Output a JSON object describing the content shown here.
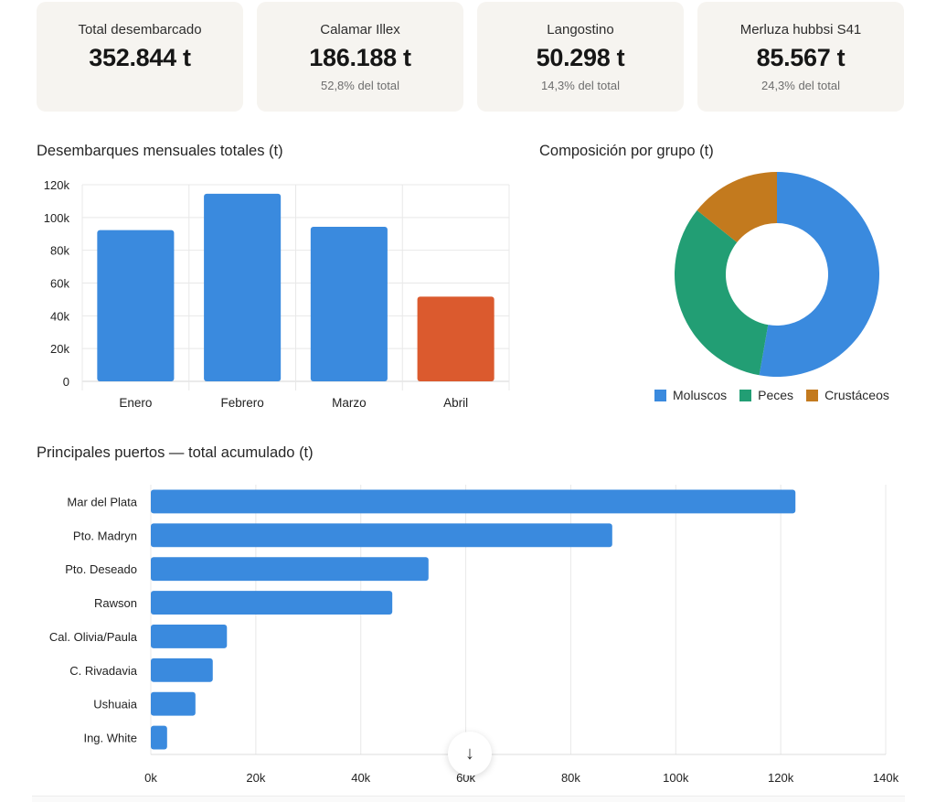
{
  "kpis": [
    {
      "label": "Total desembarcado",
      "value": "352.844 t",
      "sub": ""
    },
    {
      "label": "Calamar Illex",
      "value": "186.188 t",
      "sub": "52,8% del total"
    },
    {
      "label": "Langostino",
      "value": "50.298 t",
      "sub": "14,3% del total"
    },
    {
      "label": "Merluza hubbsi S41",
      "value": "85.567 t",
      "sub": "24,3% del total"
    }
  ],
  "colors": {
    "primary": "#3a8ade",
    "highlight": "#db5a2e",
    "peces": "#229e74",
    "crustaceos": "#c37a1e",
    "grid": "#e8e8e8"
  },
  "scroll_button": {
    "icon": "arrow-down-icon",
    "glyph": "↓"
  },
  "chart_data": [
    {
      "type": "bar",
      "title": "Desembarques mensuales totales (t)",
      "categories": [
        "Enero",
        "Febrero",
        "Marzo",
        "Abril"
      ],
      "values": [
        92300,
        114500,
        94300,
        51700
      ],
      "highlight_index": 3,
      "ylim": [
        0,
        120000
      ],
      "yticks": [
        0,
        20000,
        40000,
        60000,
        80000,
        100000,
        120000
      ],
      "ytick_labels": [
        "0",
        "20k",
        "40k",
        "60k",
        "80k",
        "100k",
        "120k"
      ],
      "xlabel": "",
      "ylabel": "",
      "grid": true
    },
    {
      "type": "pie",
      "variant": "donut",
      "title": "Composición por grupo (t)",
      "labels": [
        "Moluscos",
        "Peces",
        "Crustáceos"
      ],
      "values": [
        186188,
        116358,
        50298
      ],
      "colors": [
        "#3a8ade",
        "#229e74",
        "#c37a1e"
      ],
      "legend": "bottom"
    },
    {
      "type": "bar",
      "orientation": "horizontal",
      "title": "Principales puertos — total acumulado (t)",
      "categories": [
        "Mar del Plata",
        "Pto. Madryn",
        "Pto. Deseado",
        "Rawson",
        "Cal. Olivia/Paula",
        "C. Rivadavia",
        "Ushuaia",
        "Ing. White"
      ],
      "values": [
        122800,
        87900,
        52900,
        46000,
        14500,
        11800,
        8500,
        3100
      ],
      "xlim": [
        0,
        140000
      ],
      "xticks": [
        0,
        20000,
        40000,
        60000,
        80000,
        100000,
        120000,
        140000
      ],
      "xtick_labels": [
        "0k",
        "20k",
        "40k",
        "60k",
        "80k",
        "100k",
        "120k",
        "140k"
      ],
      "grid": true
    }
  ]
}
